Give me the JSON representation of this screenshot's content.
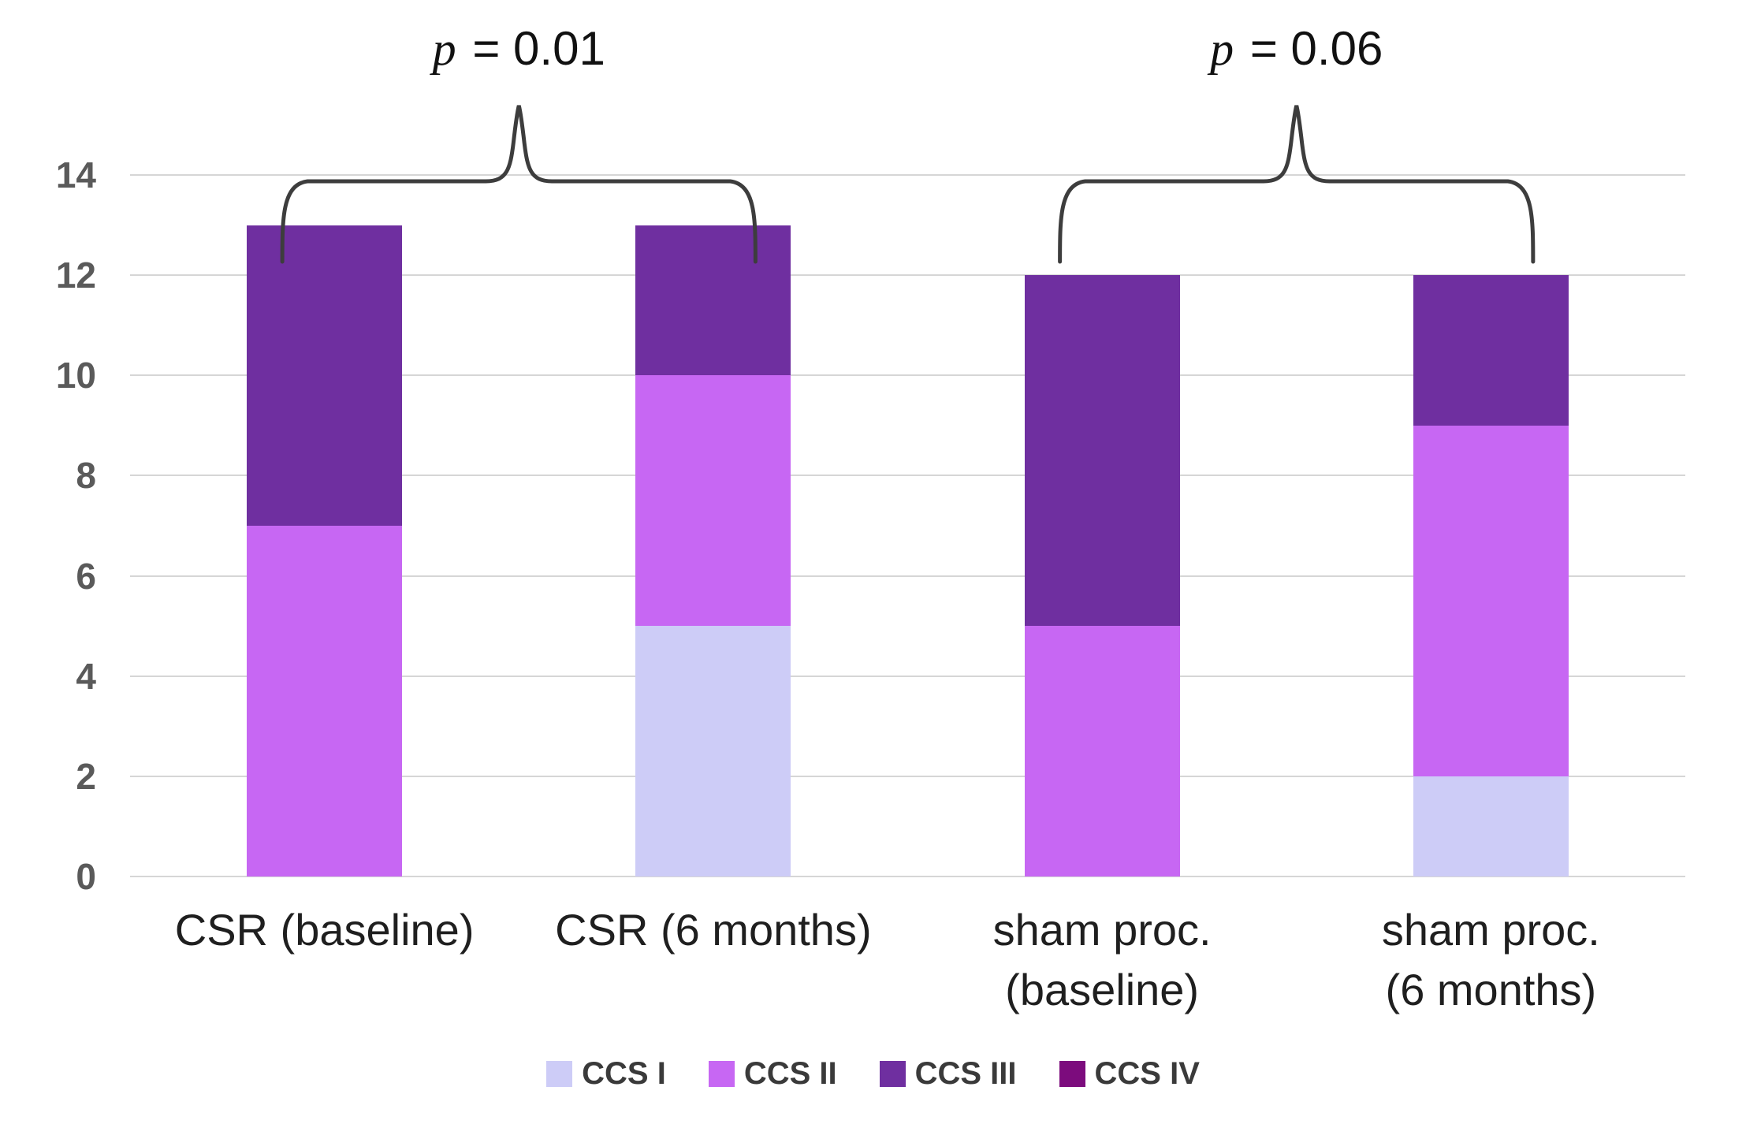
{
  "chart_data": {
    "type": "bar",
    "stacked": true,
    "title": "",
    "xlabel": "",
    "ylabel": "",
    "categories": [
      "CSR (baseline)",
      "CSR (6 months)",
      "sham proc.\n(baseline)",
      "sham proc.\n(6 months)"
    ],
    "series": [
      {
        "name": "CCS I",
        "color": "#cdccf7",
        "values": [
          0,
          5,
          0,
          2
        ]
      },
      {
        "name": "CCS II",
        "color": "#c767f3",
        "values": [
          7,
          5,
          5,
          7
        ]
      },
      {
        "name": "CCS III",
        "color": "#6f2fa0",
        "values": [
          6,
          3,
          7,
          3
        ]
      },
      {
        "name": "CCS IV",
        "color": "#7c0c7d",
        "values": [
          0,
          0,
          0,
          0
        ]
      }
    ],
    "totals": [
      13,
      13,
      12,
      12
    ],
    "ylim": [
      0,
      14
    ],
    "yticks": [
      0,
      2,
      4,
      6,
      8,
      10,
      12,
      14
    ],
    "grid": "horizontal",
    "legend_position": "bottom",
    "annotations": [
      {
        "text": "p = 0.01",
        "categories": [
          0,
          1
        ]
      },
      {
        "text": "p = 0.06",
        "categories": [
          2,
          3
        ]
      }
    ]
  },
  "colors": {
    "background": "#ffffff",
    "gridline": "#d6d6d6",
    "axis_tick_text": "#5a5a5a",
    "category_text": "#1f1f1f",
    "annotation_text": "#111111",
    "brace": "#3d3d3d"
  }
}
